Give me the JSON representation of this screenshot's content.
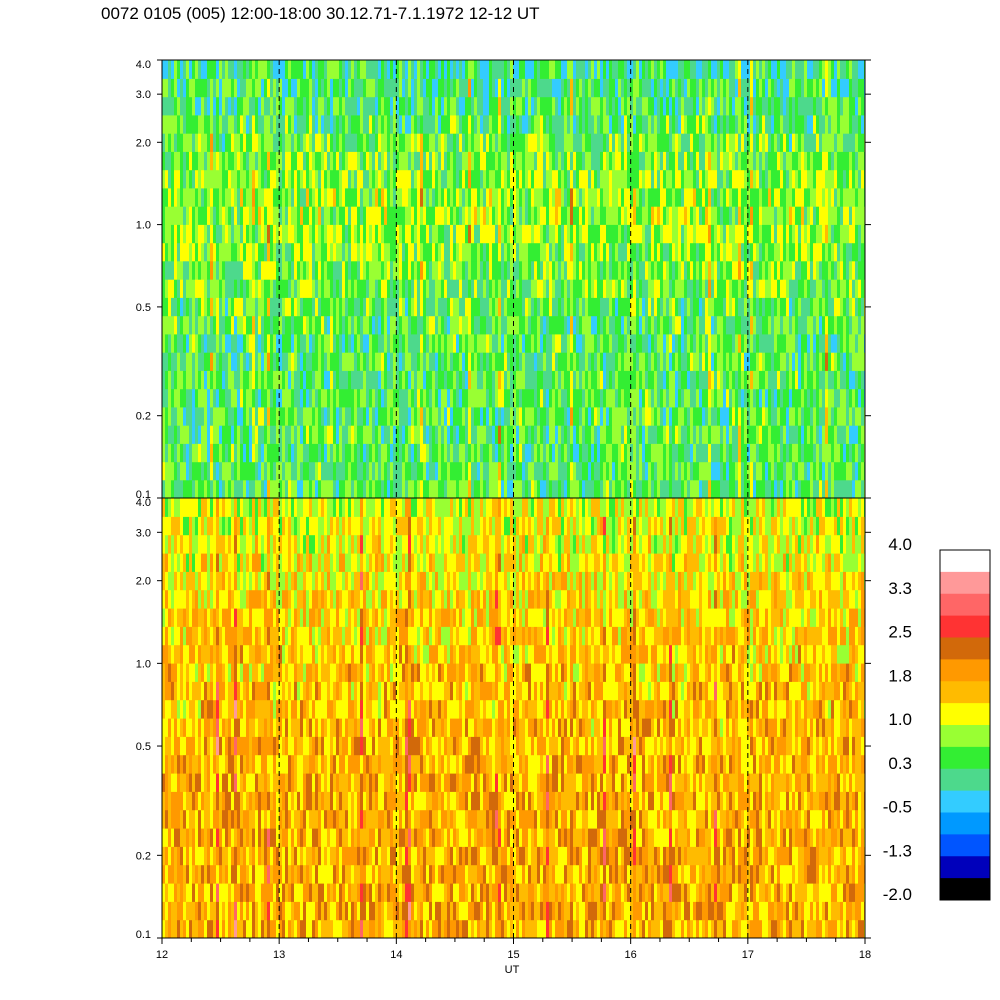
{
  "title": "0072 0105 (005) 12:00-18:00 30.12.71-7.1.1972  12-12 UT",
  "chart_data": {
    "type": "heatmap",
    "title": "0072 0105 (005) 12:00-18:00 30.12.71-7.1.1972  12-12 UT",
    "xlabel": "UT",
    "ylabel": "",
    "x_ticks": [
      "12",
      "13",
      "14",
      "15",
      "16",
      "17",
      "18"
    ],
    "xlim": [
      12,
      18
    ],
    "y_scale": "log",
    "ylim": [
      0.1,
      4.0
    ],
    "y_ticks": [
      0.1,
      0.2,
      0.5,
      1.0,
      2.0,
      3.0,
      4.0
    ],
    "y_tick_labels": [
      "0.1",
      "0.2",
      "0.5",
      "1.0",
      "2.0",
      "3.0",
      "4.0"
    ],
    "grid": "dashed vertical lines at each hour",
    "panels": [
      {
        "name": "",
        "ylim": [
          0.1,
          4.0
        ],
        "description_levels": {
          "low_freq_band": 0.4,
          "mid_band": 0.8,
          "high_band": 0.1
        }
      },
      {
        "name": "",
        "ylim": [
          0.1,
          4.0
        ],
        "description_levels": {
          "low_freq_band": 1.7,
          "mid_band": 1.5,
          "high_band": 1.0
        }
      }
    ],
    "colorbar": {
      "placement": "right",
      "labels": [
        "4.0",
        "3.3",
        "2.5",
        "1.8",
        "1.0",
        "0.3",
        "-0.5",
        "-1.3",
        "-2.0"
      ],
      "colors": [
        "#ffffff",
        "#ff9999",
        "#ff6666",
        "#ff3333",
        "#d2690a",
        "#ff9900",
        "#ffbb00",
        "#ffff00",
        "#99ff33",
        "#33ee33",
        "#4dd98c",
        "#33ccff",
        "#0099ff",
        "#0055ff",
        "#0000bb",
        "#000000"
      ]
    }
  }
}
